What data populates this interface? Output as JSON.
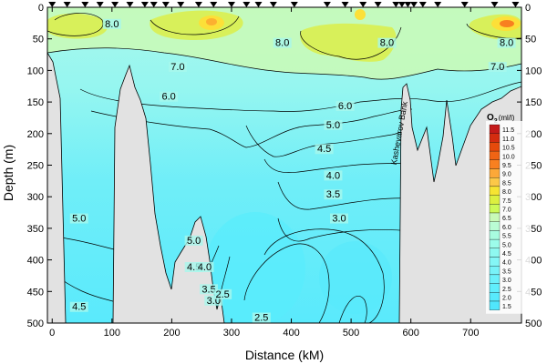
{
  "chart_data": {
    "type": "heatmap",
    "title": "",
    "xlabel": "Distance (kM)",
    "ylabel": "Depth (m)",
    "xlim": [
      -8,
      785
    ],
    "ylim": [
      0,
      500
    ],
    "y_inverted": true,
    "x_ticks": [
      "0",
      "100",
      "200",
      "300",
      "400",
      "500",
      "600",
      "700"
    ],
    "y_ticks": [
      "0",
      "50",
      "100",
      "150",
      "200",
      "250",
      "300",
      "350",
      "400",
      "450",
      "500"
    ],
    "legend": {
      "title_main": "O",
      "title_sub": "2",
      "title_unit": "(ml/l)",
      "position": "right",
      "levels": [
        "11.5",
        "11.0",
        "10.5",
        "10.0",
        "9.5",
        "9.0",
        "8.5",
        "8.0",
        "7.5",
        "7.0",
        "6.5",
        "6.0",
        "5.5",
        "5.0",
        "4.5",
        "4.0",
        "3.5",
        "3.0",
        "2.5",
        "2.0",
        "1.5"
      ],
      "colors": [
        "#c41a1a",
        "#d42c10",
        "#e64a0c",
        "#f06414",
        "#f88020",
        "#fca838",
        "#fcc848",
        "#f6e432",
        "#dcf040",
        "#ccfa58",
        "#c8fab8",
        "#bafcd4",
        "#a8fce0",
        "#9cfcea",
        "#8ef8f0",
        "#84f6f6",
        "#78f2f8",
        "#6cf0fa",
        "#60eefc",
        "#58eafc",
        "#50e6fc"
      ]
    },
    "stations_km": [
      0,
      25,
      55,
      80,
      105,
      130,
      155,
      170,
      190,
      215,
      245,
      270,
      300,
      325,
      345,
      370,
      405,
      460,
      490,
      520,
      545,
      575,
      585,
      595,
      605,
      620,
      645,
      690,
      740,
      775
    ],
    "contour_labels": [
      {
        "text": "8.0",
        "x": 100,
        "y": 30
      },
      {
        "text": "8.0",
        "x": 385,
        "y": 60
      },
      {
        "text": "8.0",
        "x": 560,
        "y": 60
      },
      {
        "text": "8.0",
        "x": 760,
        "y": 60
      },
      {
        "text": "7.0",
        "x": 210,
        "y": 98
      },
      {
        "text": "7.0",
        "x": 745,
        "y": 98
      },
      {
        "text": "6.0",
        "x": 195,
        "y": 145
      },
      {
        "text": "6.0",
        "x": 490,
        "y": 160
      },
      {
        "text": "5.0",
        "x": 470,
        "y": 190
      },
      {
        "text": "4.5",
        "x": 455,
        "y": 228
      },
      {
        "text": "4.0",
        "x": 470,
        "y": 270
      },
      {
        "text": "3.5",
        "x": 470,
        "y": 300
      },
      {
        "text": "3.0",
        "x": 480,
        "y": 338
      },
      {
        "text": "5.0",
        "x": 45,
        "y": 338
      },
      {
        "text": "5.0",
        "x": 237,
        "y": 373
      },
      {
        "text": "4.5",
        "x": 237,
        "y": 415
      },
      {
        "text": "4.0",
        "x": 255,
        "y": 415
      },
      {
        "text": "3.5",
        "x": 262,
        "y": 450
      },
      {
        "text": "3.0",
        "x": 270,
        "y": 468
      },
      {
        "text": "2.5",
        "x": 285,
        "y": 458
      },
      {
        "text": "2.5",
        "x": 350,
        "y": 495
      },
      {
        "text": "4.5",
        "x": 45,
        "y": 478
      }
    ],
    "annotations": [
      {
        "text": "Kashevarov Bank",
        "x": 585,
        "y": 200
      }
    ]
  }
}
